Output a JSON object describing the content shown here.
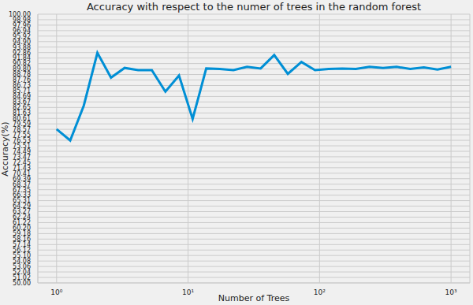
{
  "chart_data": {
    "type": "line",
    "title": "Accuracy with respect to the numer of trees in the random forest",
    "xlabel": "Number of Trees",
    "ylabel": "Accuracy(%)",
    "x": [
      1,
      1.269,
      1.61,
      2.043,
      2.593,
      3.29,
      4.175,
      5.298,
      6.723,
      8.532,
      10.83,
      13.74,
      17.43,
      22.12,
      28.07,
      35.62,
      45.2,
      57.36,
      72.79,
      92.37,
      117.2,
      148.7,
      188.7,
      239.5,
      303.9,
      385.7,
      489.4,
      621.0,
      788.0,
      1000
    ],
    "values": [
      78.6,
      76.5,
      83.0,
      92.8,
      88.2,
      90.0,
      89.6,
      89.6,
      85.6,
      88.6,
      80.5,
      89.9,
      89.8,
      89.6,
      90.2,
      89.9,
      92.4,
      88.9,
      91.1,
      89.6,
      89.8,
      89.9,
      89.8,
      90.2,
      90.0,
      90.2,
      89.8,
      90.1,
      89.7,
      90.2
    ],
    "color": "#008fd5",
    "log": "x",
    "grid": true,
    "xlim": [
      0.72,
      1390
    ],
    "xticks": [
      {
        "value": 1,
        "label": "10⁰"
      },
      {
        "value": 10,
        "label": "10¹"
      },
      {
        "value": 100,
        "label": "10²"
      },
      {
        "value": 1000,
        "label": "10³"
      }
    ],
    "ylim": [
      50,
      100
    ],
    "yticks": [
      {
        "value": 50,
        "label": "50.00"
      },
      {
        "value": 51.02,
        "label": "51.02"
      },
      {
        "value": 52.04,
        "label": "52.04"
      },
      {
        "value": 53.06,
        "label": "53.06"
      },
      {
        "value": 54.08,
        "label": "54.08"
      },
      {
        "value": 55.1,
        "label": "55.10"
      },
      {
        "value": 56.12,
        "label": "56.12"
      },
      {
        "value": 57.14,
        "label": "57.14"
      },
      {
        "value": 58.16,
        "label": "58.16"
      },
      {
        "value": 59.18,
        "label": "59.18"
      },
      {
        "value": 60.2,
        "label": "60.20"
      },
      {
        "value": 61.22,
        "label": "61.22"
      },
      {
        "value": 62.24,
        "label": "62.24"
      },
      {
        "value": 63.27,
        "label": "63.27"
      },
      {
        "value": 64.29,
        "label": "64.29"
      },
      {
        "value": 65.31,
        "label": "65.31"
      },
      {
        "value": 66.33,
        "label": "66.33"
      },
      {
        "value": 67.35,
        "label": "67.35"
      },
      {
        "value": 68.37,
        "label": "68.37"
      },
      {
        "value": 69.39,
        "label": "69.39"
      },
      {
        "value": 70.41,
        "label": "70.41"
      },
      {
        "value": 71.43,
        "label": "71.43"
      },
      {
        "value": 72.45,
        "label": "72.45"
      },
      {
        "value": 73.47,
        "label": "73.47"
      },
      {
        "value": 74.49,
        "label": "74.49"
      },
      {
        "value": 75.51,
        "label": "75.51"
      },
      {
        "value": 76.53,
        "label": "76.53"
      },
      {
        "value": 77.55,
        "label": "77.55"
      },
      {
        "value": 78.57,
        "label": "78.57"
      },
      {
        "value": 79.59,
        "label": "79.59"
      },
      {
        "value": 80.61,
        "label": "80.61"
      },
      {
        "value": 81.63,
        "label": "81.63"
      },
      {
        "value": 82.65,
        "label": "82.65"
      },
      {
        "value": 83.67,
        "label": "83.67"
      },
      {
        "value": 84.69,
        "label": "84.69"
      },
      {
        "value": 85.71,
        "label": "85.71"
      },
      {
        "value": 86.73,
        "label": "86.73"
      },
      {
        "value": 87.76,
        "label": "87.76"
      },
      {
        "value": 88.78,
        "label": "88.78"
      },
      {
        "value": 89.8,
        "label": "89.80"
      },
      {
        "value": 90.82,
        "label": "90.82"
      },
      {
        "value": 91.84,
        "label": "91.84"
      },
      {
        "value": 92.86,
        "label": "92.86"
      },
      {
        "value": 93.88,
        "label": "93.88"
      },
      {
        "value": 94.9,
        "label": "94.90"
      },
      {
        "value": 95.92,
        "label": "95.92"
      },
      {
        "value": 96.94,
        "label": "96.94"
      },
      {
        "value": 97.96,
        "label": "97.96"
      },
      {
        "value": 98.98,
        "label": "98.98"
      },
      {
        "value": 100,
        "label": "100.00"
      }
    ]
  }
}
